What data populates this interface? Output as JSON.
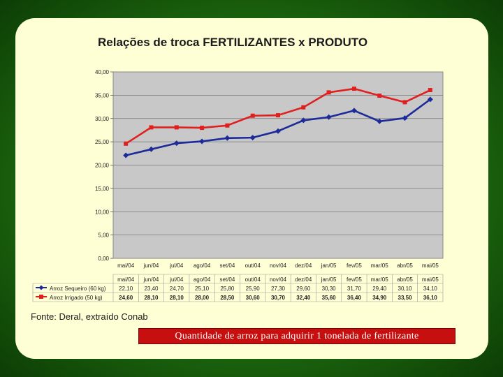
{
  "chart_data": {
    "type": "line",
    "title": "Relações de troca FERTILIZANTES x PRODUTO",
    "categories": [
      "mai/04",
      "jun/04",
      "jul/04",
      "ago/04",
      "set/04",
      "out/04",
      "nov/04",
      "dez/04",
      "jan/05",
      "fev/05",
      "mar/05",
      "abr/05",
      "mai/05"
    ],
    "y_ticks": [
      "0,00",
      "5,00",
      "10,00",
      "15,00",
      "20,00",
      "25,00",
      "30,00",
      "35,00",
      "40,00"
    ],
    "ylim": [
      0,
      40
    ],
    "grid": true,
    "legend_placement": "table-below",
    "series": [
      {
        "name": "Arroz Sequeiro (60 kg)",
        "color": "#1c2b99",
        "marker": "diamond",
        "values": [
          22.1,
          23.4,
          24.7,
          25.1,
          25.8,
          25.9,
          27.3,
          29.6,
          30.3,
          31.7,
          29.4,
          30.1,
          34.1
        ],
        "labels": [
          "22,10",
          "23,40",
          "24,70",
          "25,10",
          "25,80",
          "25,90",
          "27,30",
          "29,60",
          "30,30",
          "31,70",
          "29,40",
          "30,10",
          "34,10"
        ]
      },
      {
        "name": "Arroz Irrigado (50 kg)",
        "color": "#e01f1f",
        "marker": "square",
        "values": [
          24.6,
          28.1,
          28.1,
          28.0,
          28.5,
          30.6,
          30.7,
          32.4,
          35.6,
          36.4,
          34.9,
          33.5,
          36.1
        ],
        "labels": [
          "24,60",
          "28,10",
          "28,10",
          "28,00",
          "28,50",
          "30,60",
          "30,70",
          "32,40",
          "35,60",
          "36,40",
          "34,90",
          "33,50",
          "36,10"
        ]
      }
    ],
    "source": "Fonte: Deral, extraído Conab"
  },
  "caption": "Quantidade de arroz para adquirir 1 tonelada de fertilizante",
  "colors": {
    "background": "#1d6a0e",
    "panel": "#ffffd6",
    "plot_area": "#c8c8c8",
    "caption_bg": "#c80f0f"
  }
}
